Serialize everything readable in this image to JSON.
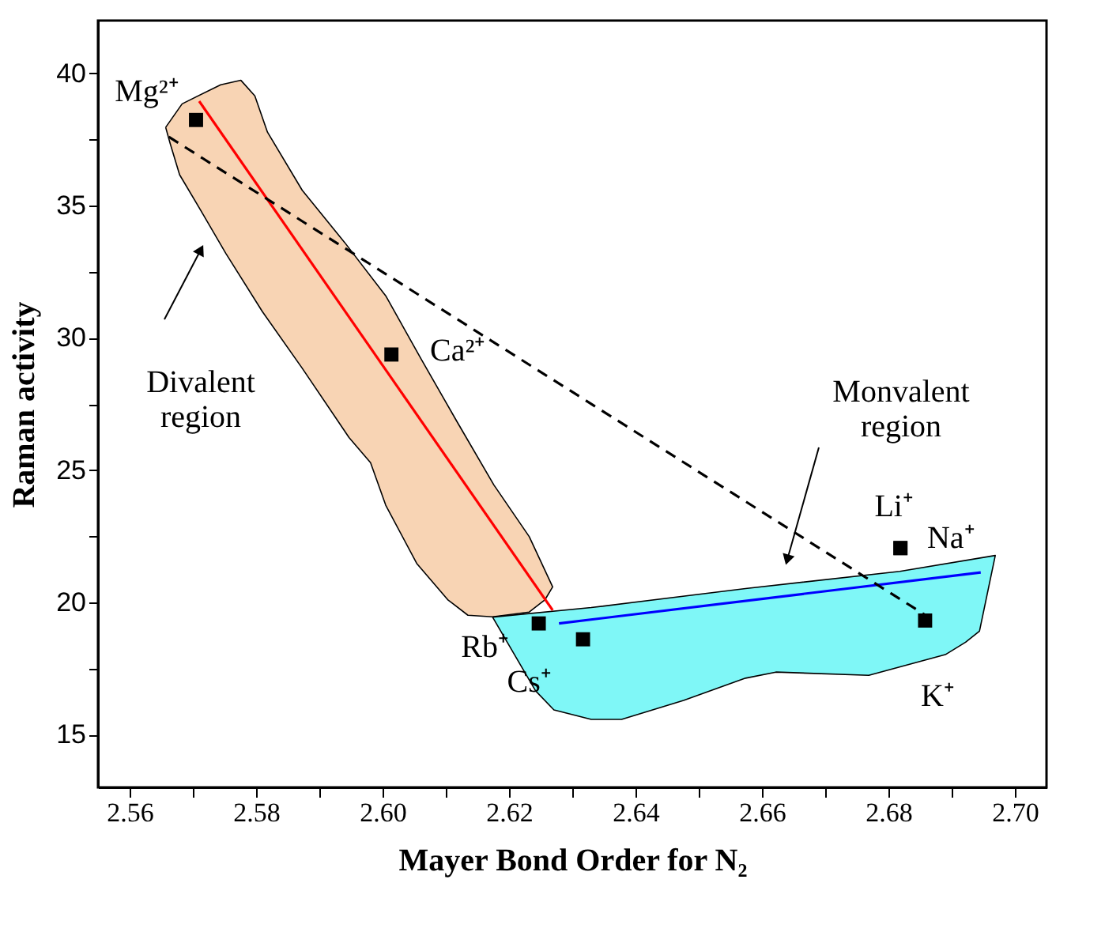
{
  "chart_data": {
    "type": "scatter",
    "xlabel": "Mayer Bond Order for N₂",
    "ylabel": "Raman activity",
    "xlim": [
      2.555,
      2.705
    ],
    "ylim": [
      13,
      42
    ],
    "xticks": [
      2.56,
      {
        "value": 2.57,
        "label": null
      },
      2.58,
      {
        "value": 2.59,
        "label": null
      },
      {
        "value": 2.6,
        "label": "2.60"
      },
      {
        "value": 2.61,
        "label": null
      },
      2.62,
      {
        "value": 2.63,
        "label": null
      },
      2.64,
      {
        "value": 2.65,
        "label": null
      },
      2.66,
      {
        "value": 2.67,
        "label": null
      },
      2.68,
      {
        "value": 2.69,
        "label": null
      },
      {
        "value": 2.7,
        "label": "2.70"
      }
    ],
    "yticks": [
      15,
      {
        "value": 17.5,
        "label": null
      },
      20,
      {
        "value": 22.5,
        "label": null
      },
      25,
      {
        "value": 27.5,
        "label": null
      },
      30,
      {
        "value": 32.5,
        "label": null
      },
      35,
      {
        "value": 37.5,
        "label": null
      },
      40
    ],
    "grid": false,
    "series": [
      {
        "type": "area",
        "color": "#f8d4b4",
        "x": [
          2.5657,
          2.5683,
          2.5744,
          2.5776,
          2.5798,
          2.5818,
          2.5873,
          2.594,
          2.6005,
          2.6061,
          2.6118,
          2.6176,
          2.6232,
          2.6269,
          2.6257,
          2.6232,
          2.6174,
          2.6135,
          2.6103,
          2.6054,
          2.6005,
          2.5981,
          2.5947,
          2.5873,
          2.581,
          2.5752,
          2.5713,
          2.5679,
          2.5664
        ],
        "values": [
          37.96,
          38.85,
          39.57,
          39.74,
          39.15,
          37.78,
          35.58,
          33.61,
          31.59,
          29.2,
          26.82,
          24.44,
          22.48,
          20.58,
          20.1,
          19.63,
          19.45,
          19.51,
          20.1,
          21.47,
          23.67,
          25.28,
          26.23,
          28.85,
          30.99,
          33.2,
          34.8,
          36.17,
          37.36
        ]
      },
      {
        "type": "area",
        "color": "#7ff7f7",
        "x": [
          2.6174,
          2.633,
          2.6574,
          2.6818,
          2.6969,
          2.6944,
          2.6922,
          2.689,
          2.6769,
          2.6622,
          2.6574,
          2.6476,
          2.6378,
          2.633,
          2.6271,
          2.6242
        ],
        "values": [
          19.44,
          19.8,
          20.52,
          21.17,
          21.77,
          18.91,
          18.49,
          18.02,
          17.24,
          17.36,
          17.13,
          16.29,
          15.57,
          15.57,
          15.93,
          16.65
        ]
      },
      {
        "type": "line",
        "color": "#ff0000",
        "x": [
          2.571,
          2.6269
        ],
        "values": [
          38.95,
          19.7
        ]
      },
      {
        "type": "line",
        "color": "#0000ff",
        "x": [
          2.6279,
          2.6946
        ],
        "values": [
          19.2,
          21.13
        ]
      },
      {
        "type": "line",
        "color": "#000000",
        "line_style": "dashed",
        "x": [
          2.5662,
          2.6866
        ],
        "values": [
          37.6,
          19.4
        ]
      },
      {
        "color": "#000000",
        "marker": "square",
        "x": [
          2.5705,
          2.6014,
          2.6247,
          2.6317,
          2.6858,
          2.6819,
          2.6819
        ],
        "values": [
          38.24,
          29.37,
          19.2,
          18.6,
          19.31,
          22.05,
          22.05
        ],
        "value_labels": [
          "Mg²⁺",
          "Ca²⁺",
          "Rb⁺",
          "Cs⁺",
          "K⁺",
          "Li⁺",
          "Na⁺"
        ]
      }
    ],
    "annotations": [
      "Divalent\nregion",
      "Monvalent\nregion"
    ]
  }
}
